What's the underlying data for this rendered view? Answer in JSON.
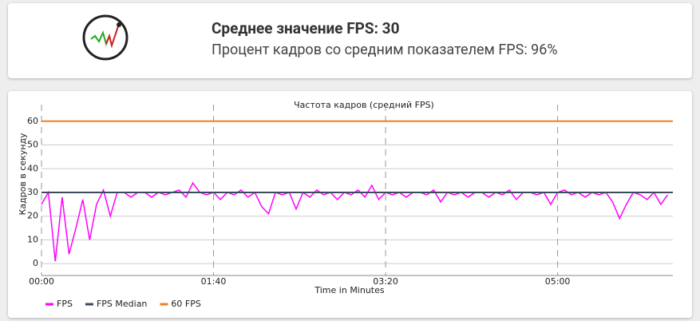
{
  "header": {
    "average": "Среднее значение FPS: 30",
    "percent": "Процент кадров со средним показателем FPS: 96%"
  },
  "chart_data": {
    "type": "line",
    "title": "Частота кадров (средний FPS)",
    "y_label": "Кадров в секунду",
    "x_label": "Time in Minutes",
    "xlim": [
      0,
      367
    ],
    "ylim": [
      -5,
      67
    ],
    "xticks": [
      {
        "value": 0,
        "label": "00:00"
      },
      {
        "value": 100,
        "label": "01:40"
      },
      {
        "value": 200,
        "label": "03:20"
      },
      {
        "value": 300,
        "label": "05:00"
      }
    ],
    "yticks": [
      0,
      10,
      20,
      30,
      40,
      50,
      60
    ],
    "grid": true,
    "series": [
      {
        "name": "FPS",
        "color": "#ff00ff",
        "x": [
          0,
          4,
          8,
          12,
          16,
          20,
          24,
          28,
          32,
          36,
          40,
          44,
          48,
          52,
          56,
          60,
          64,
          68,
          72,
          76,
          80,
          84,
          88,
          92,
          96,
          100,
          104,
          108,
          112,
          116,
          120,
          124,
          128,
          132,
          136,
          140,
          144,
          148,
          152,
          156,
          160,
          164,
          168,
          172,
          176,
          180,
          184,
          188,
          192,
          196,
          200,
          204,
          208,
          212,
          216,
          220,
          224,
          228,
          232,
          236,
          240,
          244,
          248,
          252,
          256,
          260,
          264,
          268,
          272,
          276,
          280,
          284,
          288,
          292,
          296,
          300,
          304,
          308,
          312,
          316,
          320,
          324,
          328,
          332,
          336,
          340,
          344,
          348,
          352,
          356,
          360,
          364
        ],
        "values": [
          25,
          30,
          1,
          28,
          4,
          15,
          27,
          10,
          25,
          31,
          20,
          30,
          30,
          28,
          30,
          30,
          28,
          30,
          29,
          30,
          31,
          28,
          34,
          30,
          29,
          30,
          27,
          30,
          29,
          31,
          28,
          30,
          24,
          21,
          30,
          29,
          30,
          23,
          30,
          28,
          31,
          29,
          30,
          27,
          30,
          29,
          31,
          28,
          33,
          27,
          30,
          29,
          30,
          28,
          30,
          30,
          29,
          31,
          26,
          30,
          29,
          30,
          28,
          30,
          30,
          28,
          30,
          29,
          31,
          27,
          30,
          30,
          29,
          30,
          25,
          30,
          31,
          29,
          30,
          28,
          30,
          29,
          30,
          26,
          19,
          25,
          30,
          29,
          27,
          30,
          25,
          29
        ]
      },
      {
        "name": "FPS Median",
        "color": "#3c4a5e",
        "x": [
          0,
          367
        ],
        "values": [
          30,
          30
        ]
      },
      {
        "name": "60 FPS",
        "color": "#f08020",
        "x": [
          0,
          367
        ],
        "values": [
          60,
          60
        ]
      }
    ]
  }
}
